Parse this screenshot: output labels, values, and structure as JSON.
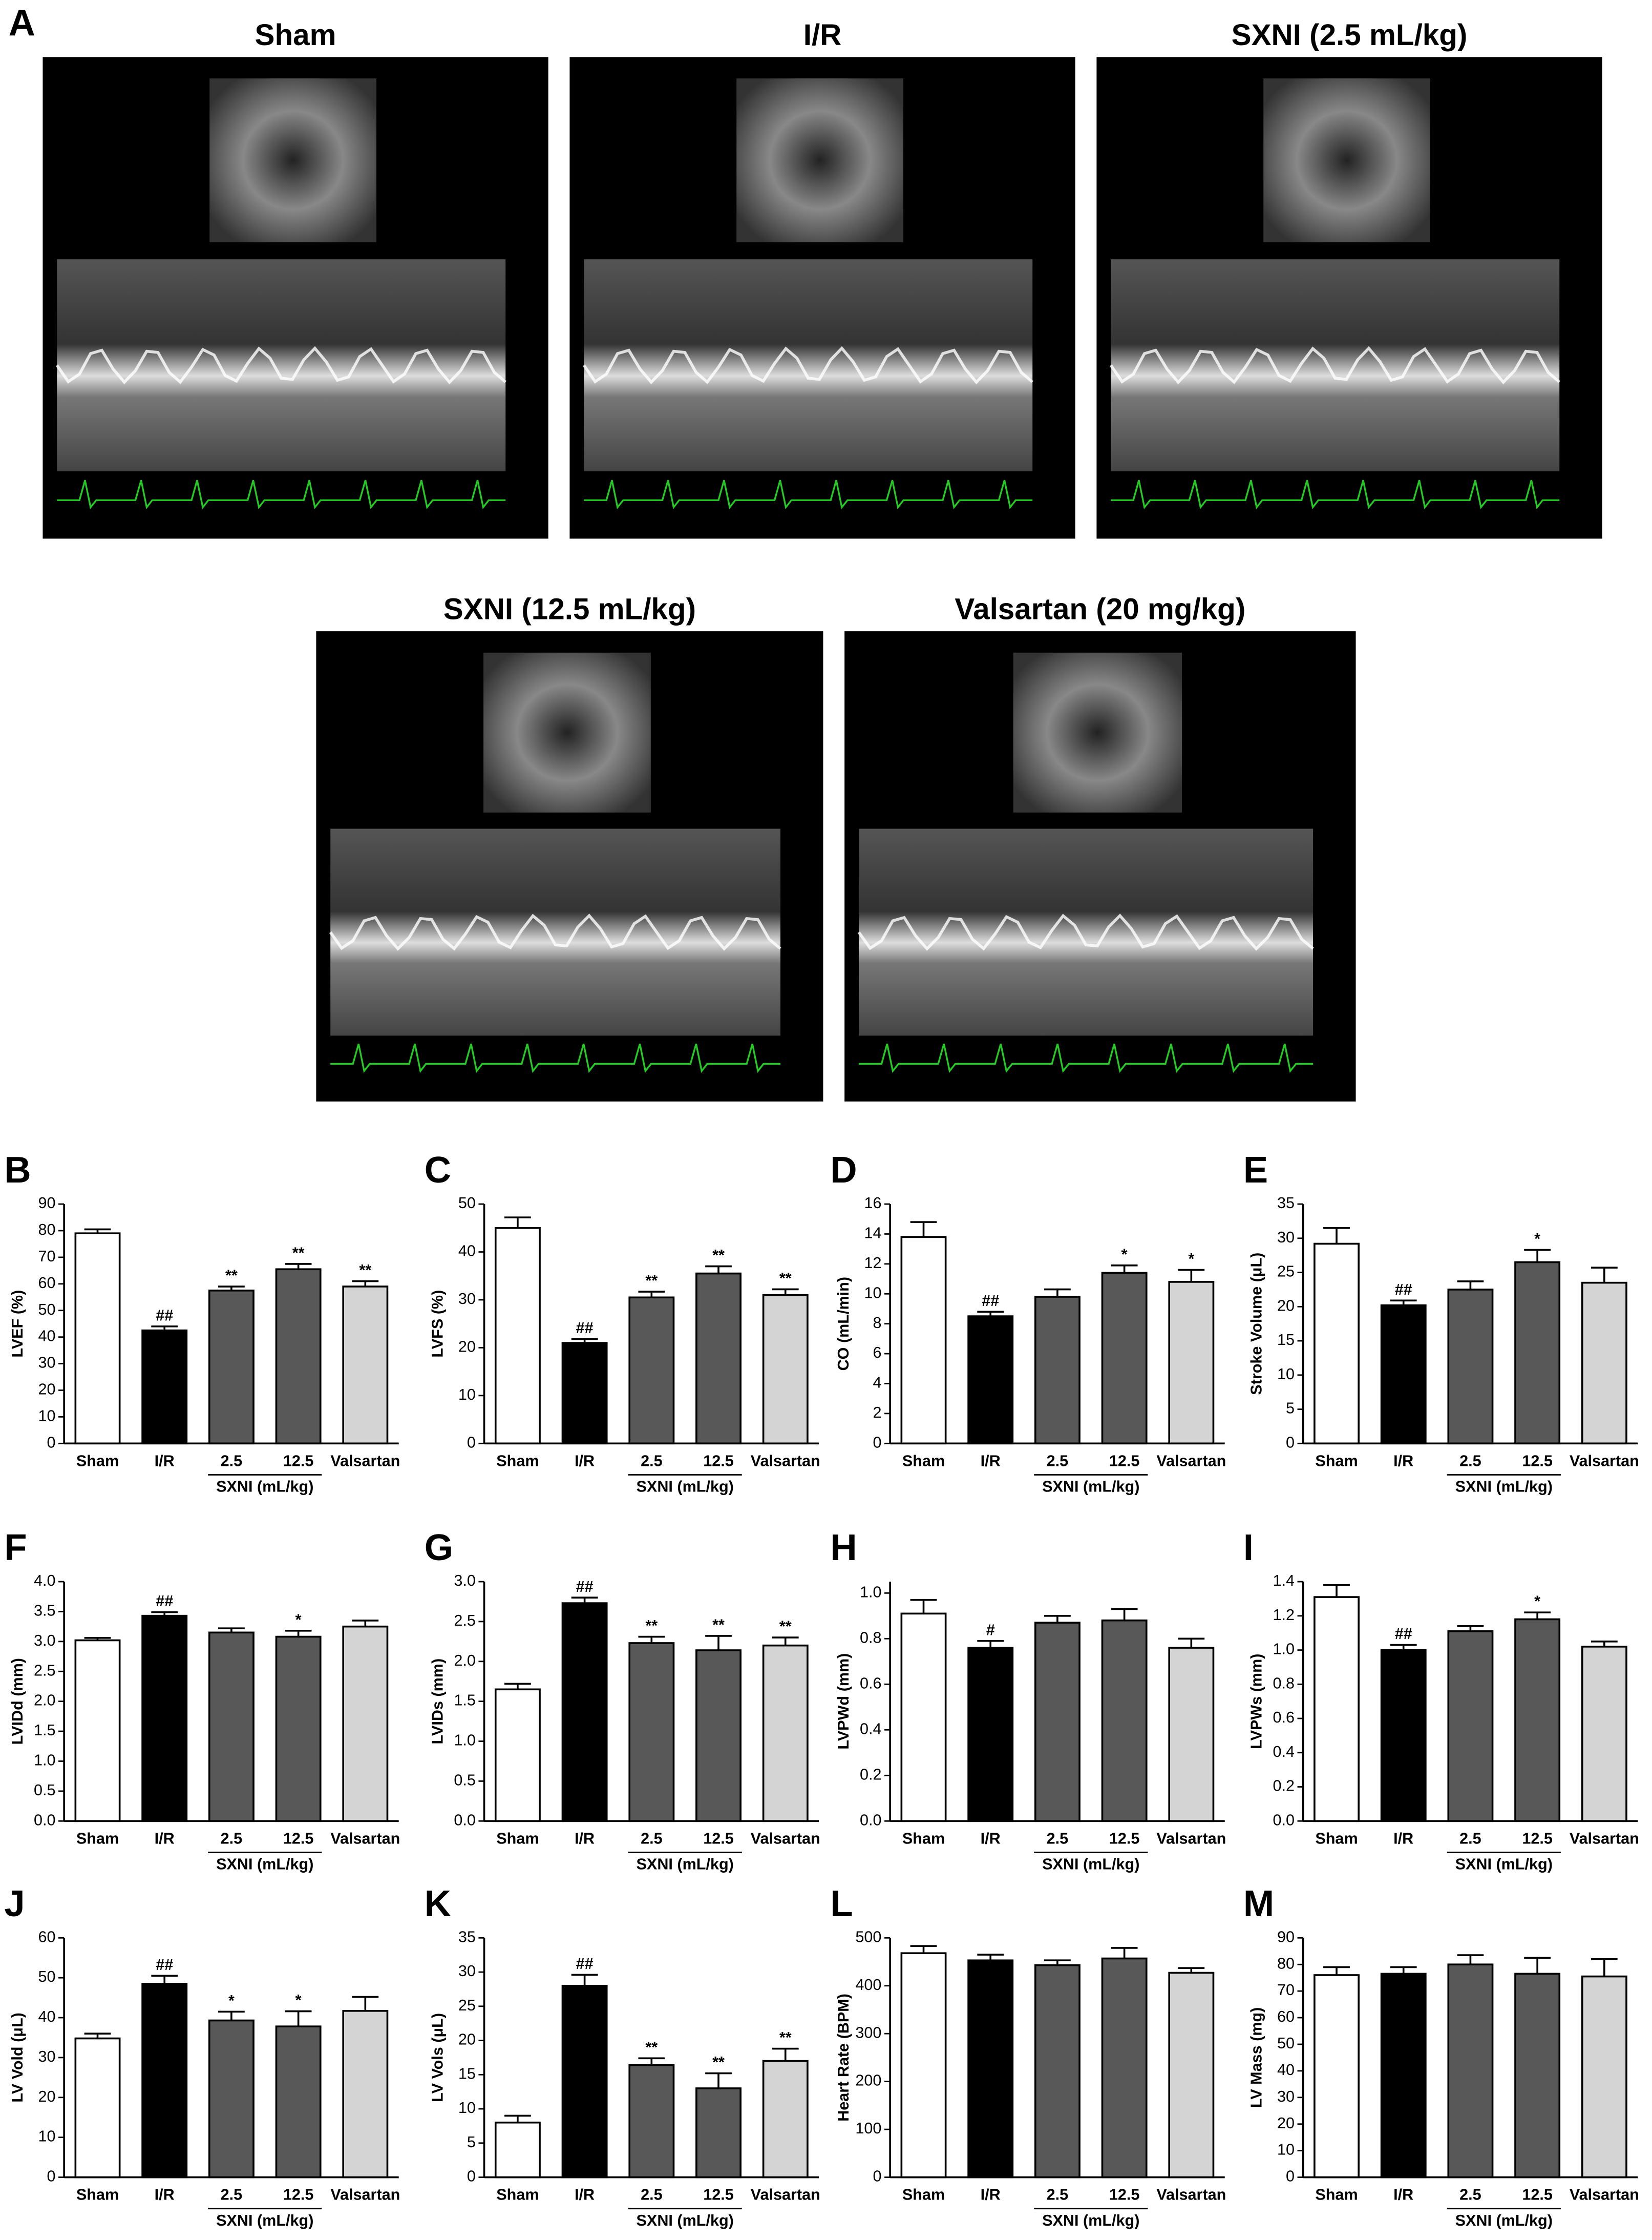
{
  "panel_a": {
    "label": "A",
    "titles": [
      "Sham",
      "I/R",
      "SXNI (2.5 mL/kg)",
      "SXNI (12.5 mL/kg)",
      "Valsartan (20 mg/kg)"
    ]
  },
  "chart_data": [
    {
      "type": "bar",
      "panel": "B",
      "ylabel": "LVEF (%)",
      "categories": [
        "Sham",
        "I/R",
        "2.5",
        "12.5",
        "Valsartan"
      ],
      "group_label": "SXNI (mL/kg)",
      "colors": [
        "#ffffff",
        "#000000",
        "#585858",
        "#585858",
        "#d4d4d4"
      ],
      "values": [
        79,
        42.5,
        57.5,
        65.5,
        59
      ],
      "errors": [
        1.5,
        1.5,
        1.5,
        2,
        2
      ],
      "annotations": [
        null,
        "##",
        "**",
        "**",
        "**"
      ],
      "ylim": [
        0,
        90
      ],
      "yticks": [
        0,
        10,
        20,
        30,
        40,
        50,
        60,
        70,
        80,
        90
      ]
    },
    {
      "type": "bar",
      "panel": "C",
      "ylabel": "LVFS (%)",
      "categories": [
        "Sham",
        "I/R",
        "2.5",
        "12.5",
        "Valsartan"
      ],
      "group_label": "SXNI (mL/kg)",
      "colors": [
        "#ffffff",
        "#000000",
        "#585858",
        "#585858",
        "#d4d4d4"
      ],
      "values": [
        45,
        21,
        30.5,
        35.5,
        31
      ],
      "errors": [
        2.2,
        0.8,
        1.2,
        1.5,
        1.2
      ],
      "annotations": [
        null,
        "##",
        "**",
        "**",
        "**"
      ],
      "ylim": [
        0,
        50
      ],
      "yticks": [
        0,
        10,
        20,
        30,
        40,
        50
      ]
    },
    {
      "type": "bar",
      "panel": "D",
      "ylabel": "CO (mL/min)",
      "categories": [
        "Sham",
        "I/R",
        "2.5",
        "12.5",
        "Valsartan"
      ],
      "group_label": "SXNI (mL/kg)",
      "colors": [
        "#ffffff",
        "#000000",
        "#585858",
        "#585858",
        "#d4d4d4"
      ],
      "values": [
        13.8,
        8.5,
        9.8,
        11.4,
        10.8
      ],
      "errors": [
        1,
        0.3,
        0.5,
        0.5,
        0.8
      ],
      "annotations": [
        null,
        "##",
        null,
        "*",
        "*"
      ],
      "ylim": [
        0,
        16
      ],
      "yticks": [
        0,
        2,
        4,
        6,
        8,
        10,
        12,
        14,
        16
      ]
    },
    {
      "type": "bar",
      "panel": "E",
      "ylabel": "Stroke Volume (μL)",
      "categories": [
        "Sham",
        "I/R",
        "2.5",
        "12.5",
        "Valsartan"
      ],
      "group_label": "SXNI (mL/kg)",
      "colors": [
        "#ffffff",
        "#000000",
        "#585858",
        "#585858",
        "#d4d4d4"
      ],
      "values": [
        29.2,
        20.2,
        22.5,
        26.5,
        23.5
      ],
      "errors": [
        2.3,
        0.7,
        1.2,
        1.8,
        2.2
      ],
      "annotations": [
        null,
        "##",
        null,
        "*",
        null
      ],
      "ylim": [
        0,
        35
      ],
      "yticks": [
        0,
        5,
        10,
        15,
        20,
        25,
        30,
        35
      ]
    },
    {
      "type": "bar",
      "panel": "F",
      "ylabel": "LVIDd (mm)",
      "categories": [
        "Sham",
        "I/R",
        "2.5",
        "12.5",
        "Valsartan"
      ],
      "group_label": "SXNI (mL/kg)",
      "colors": [
        "#ffffff",
        "#000000",
        "#585858",
        "#585858",
        "#d4d4d4"
      ],
      "values": [
        3.02,
        3.43,
        3.15,
        3.08,
        3.25
      ],
      "errors": [
        0.04,
        0.06,
        0.07,
        0.1,
        0.1
      ],
      "annotations": [
        null,
        "##",
        null,
        "*",
        null
      ],
      "ylim": [
        0,
        4
      ],
      "yticks": [
        {
          "value": 0,
          "label": "0.0"
        },
        0.5,
        {
          "value": 1,
          "label": "1.0"
        },
        1.5,
        {
          "value": 2,
          "label": "2.0"
        },
        2.5,
        {
          "value": 3,
          "label": "3.0"
        },
        3.5,
        {
          "value": 4,
          "label": "4.0"
        }
      ]
    },
    {
      "type": "bar",
      "panel": "G",
      "ylabel": "LVIDs (mm)",
      "categories": [
        "Sham",
        "I/R",
        "2.5",
        "12.5",
        "Valsartan"
      ],
      "group_label": "SXNI (mL/kg)",
      "colors": [
        "#ffffff",
        "#000000",
        "#585858",
        "#585858",
        "#d4d4d4"
      ],
      "values": [
        1.65,
        2.73,
        2.23,
        2.14,
        2.2
      ],
      "errors": [
        0.07,
        0.07,
        0.08,
        0.18,
        0.1
      ],
      "annotations": [
        null,
        "##",
        "**",
        "**",
        "**"
      ],
      "ylim": [
        0,
        3
      ],
      "yticks": [
        {
          "value": 0,
          "label": "0.0"
        },
        0.5,
        {
          "value": 1,
          "label": "1.0"
        },
        1.5,
        {
          "value": 2,
          "label": "2.0"
        },
        2.5,
        {
          "value": 3,
          "label": "3.0"
        }
      ]
    },
    {
      "type": "bar",
      "panel": "H",
      "ylabel": "LVPWd (mm)",
      "categories": [
        "Sham",
        "I/R",
        "2.5",
        "12.5",
        "Valsartan"
      ],
      "group_label": "SXNI (mL/kg)",
      "colors": [
        "#ffffff",
        "#000000",
        "#585858",
        "#585858",
        "#d4d4d4"
      ],
      "values": [
        0.91,
        0.76,
        0.87,
        0.88,
        0.76
      ],
      "errors": [
        0.06,
        0.03,
        0.03,
        0.05,
        0.04
      ],
      "annotations": [
        null,
        "#",
        null,
        null,
        null
      ],
      "ylim": [
        0,
        1.05
      ],
      "yticks": [
        {
          "value": 0,
          "label": "0.0"
        },
        0.2,
        0.4,
        0.6,
        0.8,
        {
          "value": 1,
          "label": "1.0"
        }
      ]
    },
    {
      "type": "bar",
      "panel": "I",
      "ylabel": "LVPWs (mm)",
      "categories": [
        "Sham",
        "I/R",
        "2.5",
        "12.5",
        "Valsartan"
      ],
      "group_label": "SXNI (mL/kg)",
      "colors": [
        "#ffffff",
        "#000000",
        "#585858",
        "#585858",
        "#d4d4d4"
      ],
      "values": [
        1.31,
        1.0,
        1.11,
        1.18,
        1.02
      ],
      "errors": [
        0.07,
        0.03,
        0.03,
        0.04,
        0.03
      ],
      "annotations": [
        null,
        "##",
        null,
        "*",
        null
      ],
      "ylim": [
        0,
        1.4
      ],
      "yticks": [
        {
          "value": 0,
          "label": "0.0"
        },
        0.2,
        0.4,
        0.6,
        0.8,
        {
          "value": 1,
          "label": "1.0"
        },
        1.2,
        1.4
      ]
    },
    {
      "type": "bar",
      "panel": "J",
      "ylabel": "LV Vold (μL)",
      "categories": [
        "Sham",
        "I/R",
        "2.5",
        "12.5",
        "Valsartan"
      ],
      "group_label": "SXNI (mL/kg)",
      "colors": [
        "#ffffff",
        "#000000",
        "#585858",
        "#585858",
        "#d4d4d4"
      ],
      "values": [
        34.8,
        48.5,
        39.3,
        37.8,
        41.7
      ],
      "errors": [
        1.2,
        2,
        2.2,
        3.8,
        3.5
      ],
      "annotations": [
        null,
        "##",
        "*",
        "*",
        null
      ],
      "ylim": [
        0,
        60
      ],
      "yticks": [
        0,
        10,
        20,
        30,
        40,
        50,
        60
      ]
    },
    {
      "type": "bar",
      "panel": "K",
      "ylabel": "LV Vols (μL)",
      "categories": [
        "Sham",
        "I/R",
        "2.5",
        "12.5",
        "Valsartan"
      ],
      "group_label": "SXNI (mL/kg)",
      "colors": [
        "#ffffff",
        "#000000",
        "#585858",
        "#585858",
        "#d4d4d4"
      ],
      "values": [
        8,
        28,
        16.4,
        13,
        17
      ],
      "errors": [
        1,
        1.6,
        1,
        2.2,
        1.8
      ],
      "annotations": [
        null,
        "##",
        "**",
        "**",
        "**"
      ],
      "ylim": [
        0,
        35
      ],
      "yticks": [
        0,
        5,
        10,
        15,
        20,
        25,
        30,
        35
      ]
    },
    {
      "type": "bar",
      "panel": "L",
      "ylabel": "Heart Rate (BPM)",
      "categories": [
        "Sham",
        "I/R",
        "2.5",
        "12.5",
        "Valsartan"
      ],
      "group_label": "SXNI (mL/kg)",
      "colors": [
        "#ffffff",
        "#000000",
        "#585858",
        "#585858",
        "#d4d4d4"
      ],
      "values": [
        468,
        453,
        443,
        457,
        427
      ],
      "errors": [
        15,
        12,
        10,
        22,
        10
      ],
      "annotations": [
        null,
        null,
        null,
        null,
        null
      ],
      "ylim": [
        0,
        500
      ],
      "yticks": [
        0,
        100,
        200,
        300,
        400,
        500
      ]
    },
    {
      "type": "bar",
      "panel": "M",
      "ylabel": "LV Mass (mg)",
      "categories": [
        "Sham",
        "I/R",
        "2.5",
        "12.5",
        "Valsartan"
      ],
      "group_label": "SXNI (mL/kg)",
      "colors": [
        "#ffffff",
        "#000000",
        "#585858",
        "#585858",
        "#d4d4d4"
      ],
      "values": [
        76,
        76.5,
        80,
        76.5,
        75.5
      ],
      "errors": [
        3,
        2.5,
        3.5,
        6,
        6.5
      ],
      "annotations": [
        null,
        null,
        null,
        null,
        null
      ],
      "ylim": [
        0,
        90
      ],
      "yticks": [
        0,
        10,
        20,
        30,
        40,
        50,
        60,
        70,
        80,
        90
      ]
    }
  ]
}
